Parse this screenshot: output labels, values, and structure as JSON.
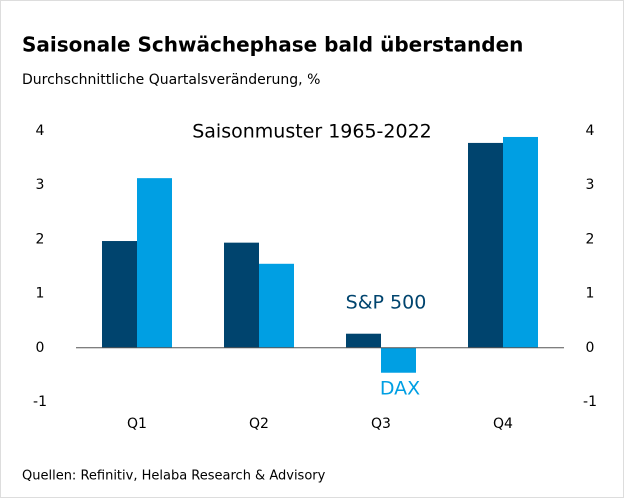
{
  "chart_data": {
    "type": "bar",
    "title": "Saisonale Schwächephase bald überstanden",
    "subtitle": "Durchschnittliche Quartalsveränderung, %",
    "annotation": "Saisonmuster 1965-2022",
    "source": "Quellen: Refinitiv, Helaba Research & Advisory",
    "categories": [
      "Q1",
      "Q2",
      "Q3",
      "Q4"
    ],
    "series": [
      {
        "name": "S&P 500",
        "color": "#00446e",
        "values": [
          1.97,
          1.94,
          0.26,
          3.78
        ]
      },
      {
        "name": "DAX",
        "color": "#009fe3",
        "values": [
          3.13,
          1.55,
          -0.46,
          3.89
        ]
      }
    ],
    "ylim": [
      -1,
      4
    ],
    "yticks": [
      -1,
      0,
      1,
      2,
      3,
      4
    ],
    "y2lim": [
      -1,
      4
    ],
    "y2ticks": [
      -1,
      0,
      1,
      2,
      3,
      4
    ]
  }
}
